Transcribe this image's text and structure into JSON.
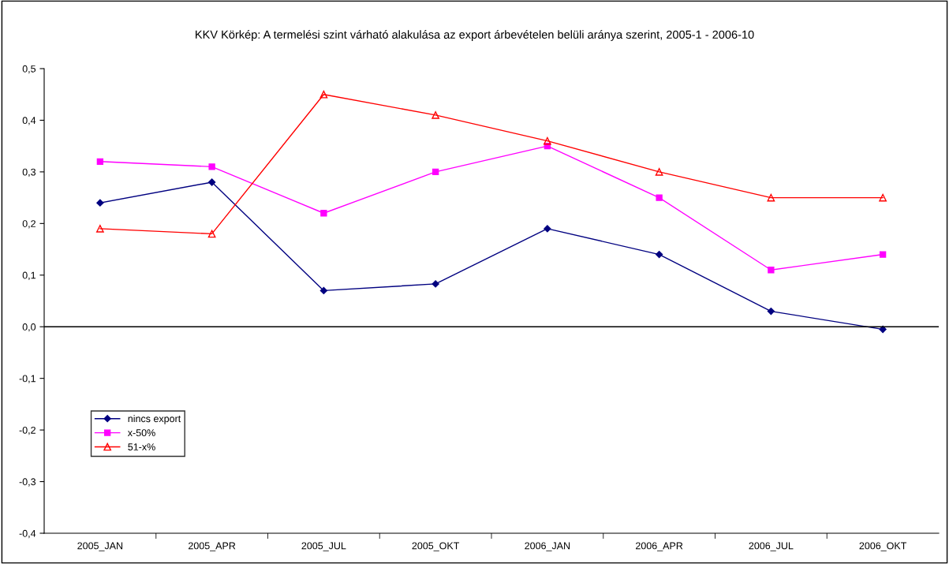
{
  "chart_data": {
    "type": "line",
    "title": "KKV Körkép: A termelési szint várható alakulása az export árbevételen belüli aránya szerint, 2005-1 - 2006-10",
    "categories": [
      "2005_JAN",
      "2005_APR",
      "2005_JUL",
      "2005_OKT",
      "2006_JAN",
      "2006_APR",
      "2006_JUL",
      "2006_OKT"
    ],
    "series": [
      {
        "name": "nincs export",
        "color": "#000080",
        "marker": "diamond",
        "values": [
          0.24,
          0.28,
          0.07,
          0.083,
          0.19,
          0.14,
          0.03,
          -0.005
        ]
      },
      {
        "name": "x-50%",
        "color": "#ff00ff",
        "marker": "square",
        "values": [
          0.32,
          0.31,
          0.22,
          0.3,
          0.35,
          0.25,
          0.11,
          0.14
        ]
      },
      {
        "name": "51-x%",
        "color": "#ff0000",
        "marker": "triangle",
        "values": [
          0.19,
          0.18,
          0.45,
          0.41,
          0.36,
          0.3,
          0.25,
          0.25
        ]
      }
    ],
    "ylim": [
      -0.4,
      0.5
    ],
    "yticks": [
      {
        "value": -0.4,
        "label": "-0,4"
      },
      {
        "value": -0.3,
        "label": "-0,3"
      },
      {
        "value": -0.2,
        "label": "-0,2"
      },
      {
        "value": -0.1,
        "label": "-0,1"
      },
      {
        "value": 0,
        "label": "0,0"
      },
      {
        "value": 0.1,
        "label": "0,1"
      },
      {
        "value": 0.2,
        "label": "0,2"
      },
      {
        "value": 0.3,
        "label": "0,3"
      },
      {
        "value": 0.4,
        "label": "0,4"
      },
      {
        "value": 0.5,
        "label": "0,5"
      }
    ],
    "ref_lines": [
      {
        "axis": "y",
        "value": 0,
        "color": "#000000"
      }
    ],
    "grid": false,
    "legend": "bottom left",
    "line_style": "solid"
  }
}
